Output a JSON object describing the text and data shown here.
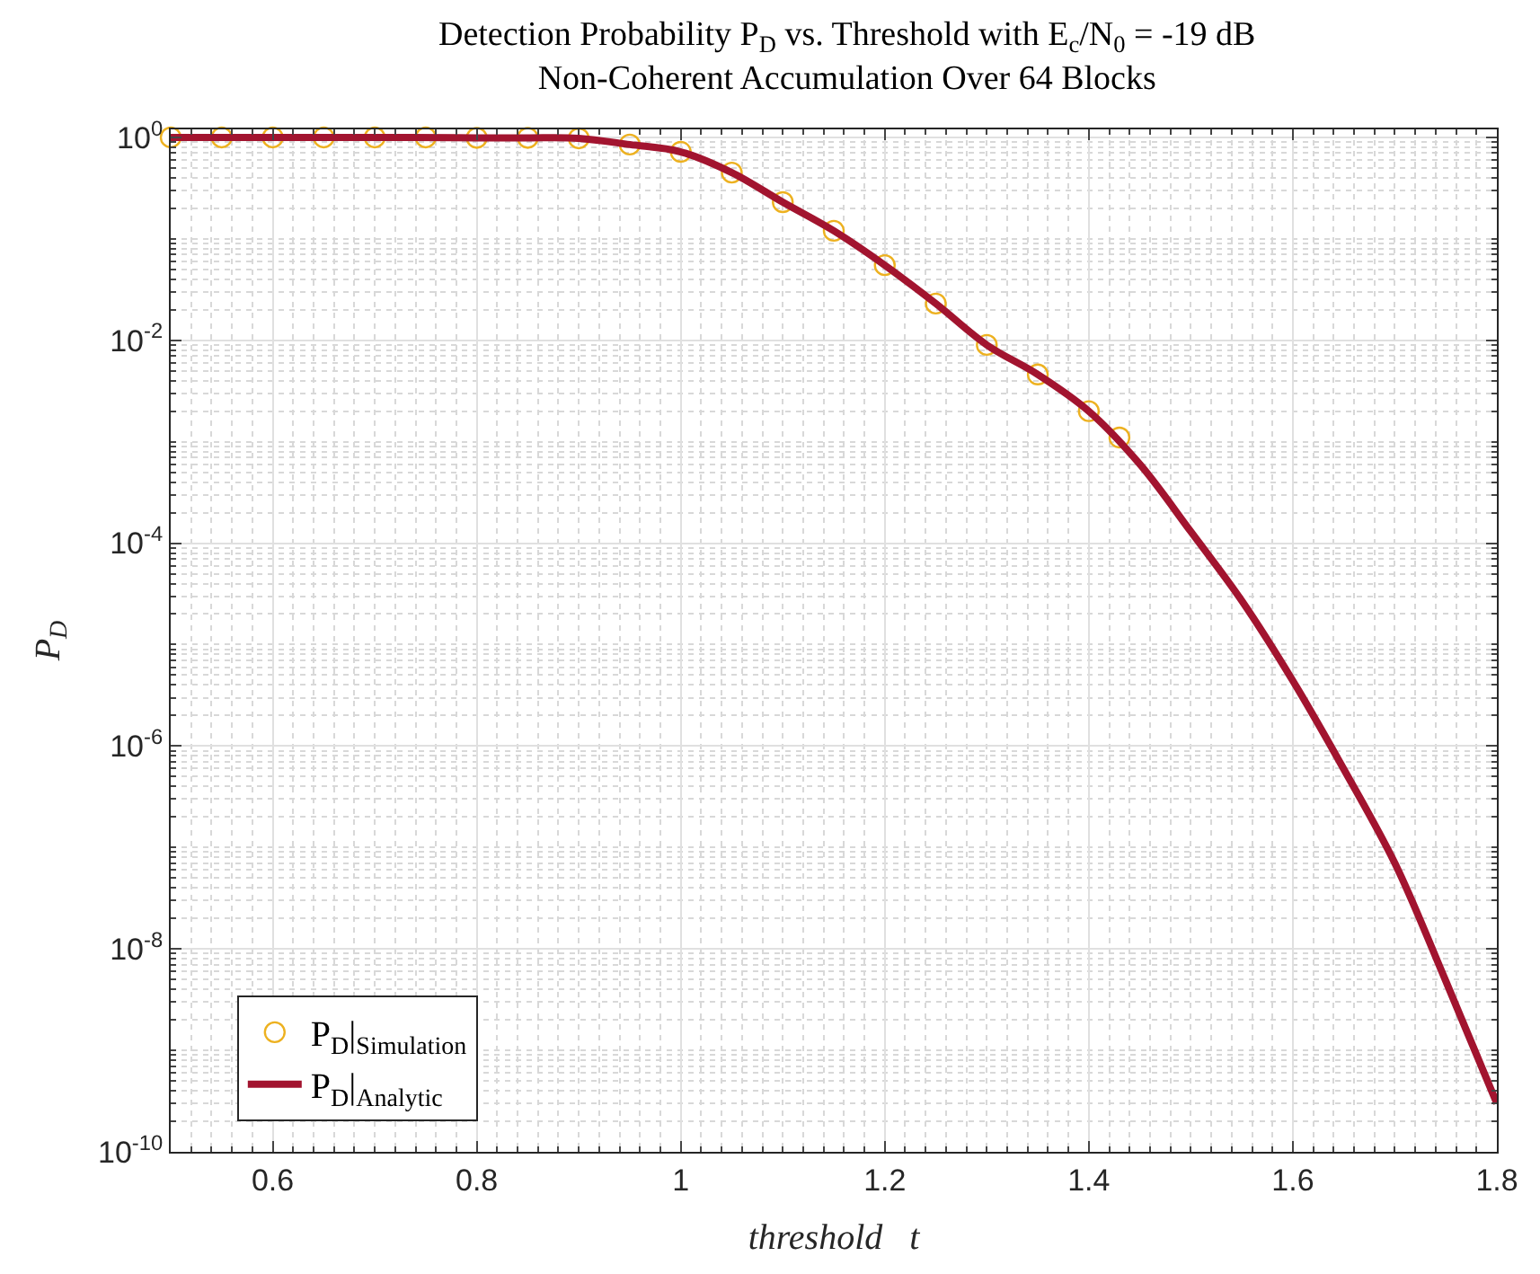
{
  "chart_data": {
    "type": "line",
    "title": "Detection Probability P$_{D}$ vs. Threshold with E$_{c}$/N$_{0}$ = -19 dB",
    "subtitle": "Non-Coherent Accumulation Over 64 Blocks",
    "xlabel": "threshold   t",
    "ylabel": "P$_{D}$",
    "log": "y",
    "grid": true,
    "legend": "bottom left",
    "xlim": [
      0.5,
      1.8
    ],
    "xticks": [
      0.6,
      0.8,
      1,
      1.2,
      1.4,
      1.6,
      1.8
    ],
    "ylim": [
      1e-10,
      1.2
    ],
    "yticks": [
      {
        "value": 1,
        "label": "10$^{0}$"
      },
      {
        "value": 0.01,
        "label": "10$^{-2}$"
      },
      {
        "value": 0.0001,
        "label": "10$^{-4}$"
      },
      {
        "value": 1e-06,
        "label": "10$^{-6}$"
      },
      {
        "value": 1e-08,
        "label": "10$^{-8}$"
      },
      {
        "value": 1e-10,
        "label": "10$^{-10}$"
      }
    ],
    "series": [
      {
        "name": "P$_{D}$|$_{Simulation}$",
        "type": "scatter",
        "marker": "circle",
        "color": "#edb120",
        "x": [
          0.5,
          0.55,
          0.6,
          0.65,
          0.7,
          0.75,
          0.8,
          0.85,
          0.9,
          0.95,
          1.0,
          1.05,
          1.1,
          1.15,
          1.2,
          1.25,
          1.3,
          1.35,
          1.4,
          1.43
        ],
        "values": [
          1,
          1,
          1,
          1,
          1,
          1,
          0.99,
          0.99,
          0.98,
          0.85,
          0.72,
          0.45,
          0.23,
          0.12,
          0.055,
          0.023,
          0.009,
          0.0046,
          0.002,
          0.0011
        ]
      },
      {
        "name": "P$_{D}$|$_{Analytic}$",
        "line_style": "solid",
        "color": "#a2142f",
        "x": [
          0.5,
          0.6,
          0.7,
          0.8,
          0.85,
          0.9,
          0.95,
          1.0,
          1.05,
          1.1,
          1.15,
          1.2,
          1.25,
          1.3,
          1.35,
          1.4,
          1.45,
          1.5,
          1.55,
          1.6,
          1.65,
          1.7,
          1.75,
          1.8
        ],
        "values": [
          1,
          1,
          1,
          0.99,
          0.99,
          0.98,
          0.85,
          0.72,
          0.45,
          0.23,
          0.12,
          0.055,
          0.023,
          0.009,
          0.0046,
          0.002,
          0.0006,
          0.00013,
          2.7e-05,
          4.4e-06,
          5.9e-07,
          7e-08,
          4.8e-09,
          3e-10
        ]
      }
    ]
  }
}
